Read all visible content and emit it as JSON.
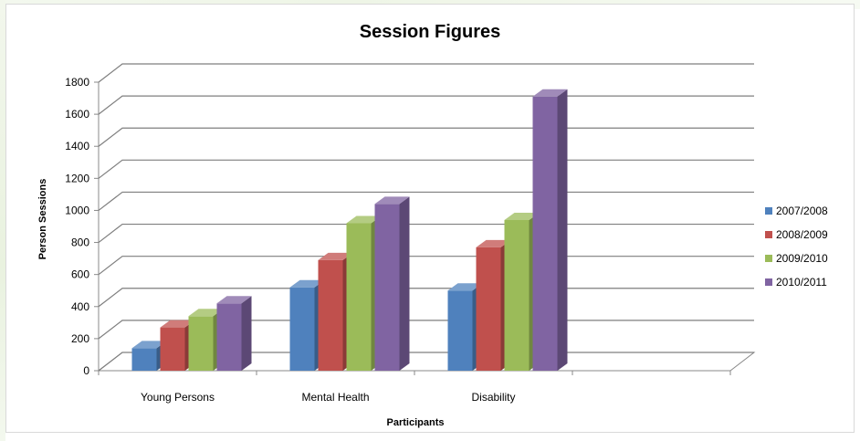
{
  "chart_data": {
    "type": "bar",
    "title": "Session Figures",
    "xlabel": "Participants",
    "ylabel": "Person Sessions",
    "ylim": [
      0,
      1800
    ],
    "yticks": [
      0,
      200,
      400,
      600,
      800,
      1000,
      1200,
      1400,
      1600,
      1800
    ],
    "categories": [
      "Young Persons",
      "Mental Health",
      "Disability"
    ],
    "series": [
      {
        "name": "2007/2008",
        "color": "#4f81bd",
        "values": [
          140,
          520,
          500
        ]
      },
      {
        "name": "2008/2009",
        "color": "#c0504d",
        "values": [
          270,
          690,
          770
        ]
      },
      {
        "name": "2009/2010",
        "color": "#9bbb59",
        "values": [
          340,
          920,
          940
        ]
      },
      {
        "name": "2010/2011",
        "color": "#8064a2",
        "values": [
          420,
          1040,
          1710
        ]
      }
    ],
    "grid": true,
    "legend_position": "right"
  }
}
